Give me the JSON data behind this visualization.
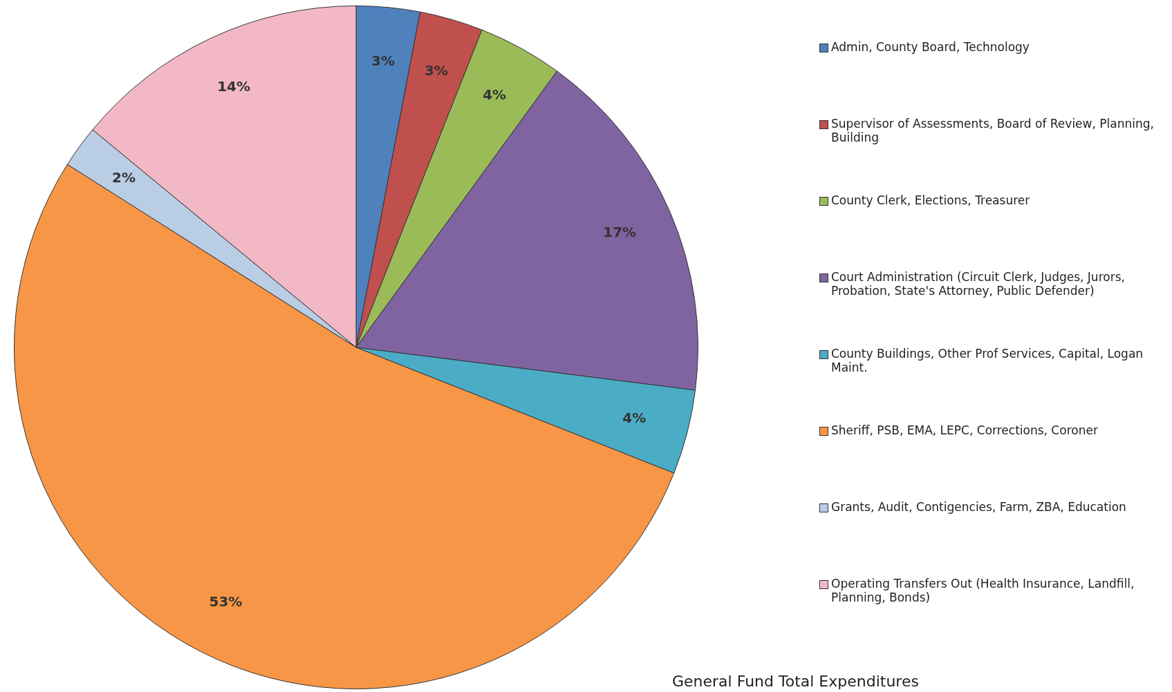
{
  "chart_data": {
    "type": "pie",
    "categories": [
      "Admin, County Board, Technology",
      "Supervisor of Assessments, Board of Review, Planning, Building",
      "County Clerk, Elections, Treasurer",
      "Court Administration (Circuit Clerk, Judges, Jurors, Probation, State's Attorney, Public Defender)",
      "County Buildings, Other Prof Services, Capital, Logan Maint.",
      "Sheriff, PSB, EMA, LEPC, Corrections, Coroner",
      "Grants, Audit, Contigencies, Farm, ZBA, Education",
      "Operating Transfers Out (Health Insurance, Landfill, Planning, Bonds)"
    ],
    "values": [
      3,
      3,
      4,
      17,
      4,
      53,
      2,
      14
    ],
    "value_labels": [
      "3%",
      "3%",
      "4%",
      "17%",
      "4%",
      "53%",
      "2%",
      "14%"
    ],
    "colors": [
      "#4f81bd",
      "#c0504d",
      "#9bbb59",
      "#8064a2",
      "#4bacc6",
      "#f79646",
      "#b9cde5",
      "#f2b8c6"
    ],
    "legend": "right",
    "annotations": [
      "General Fund Total Expenditures"
    ]
  }
}
